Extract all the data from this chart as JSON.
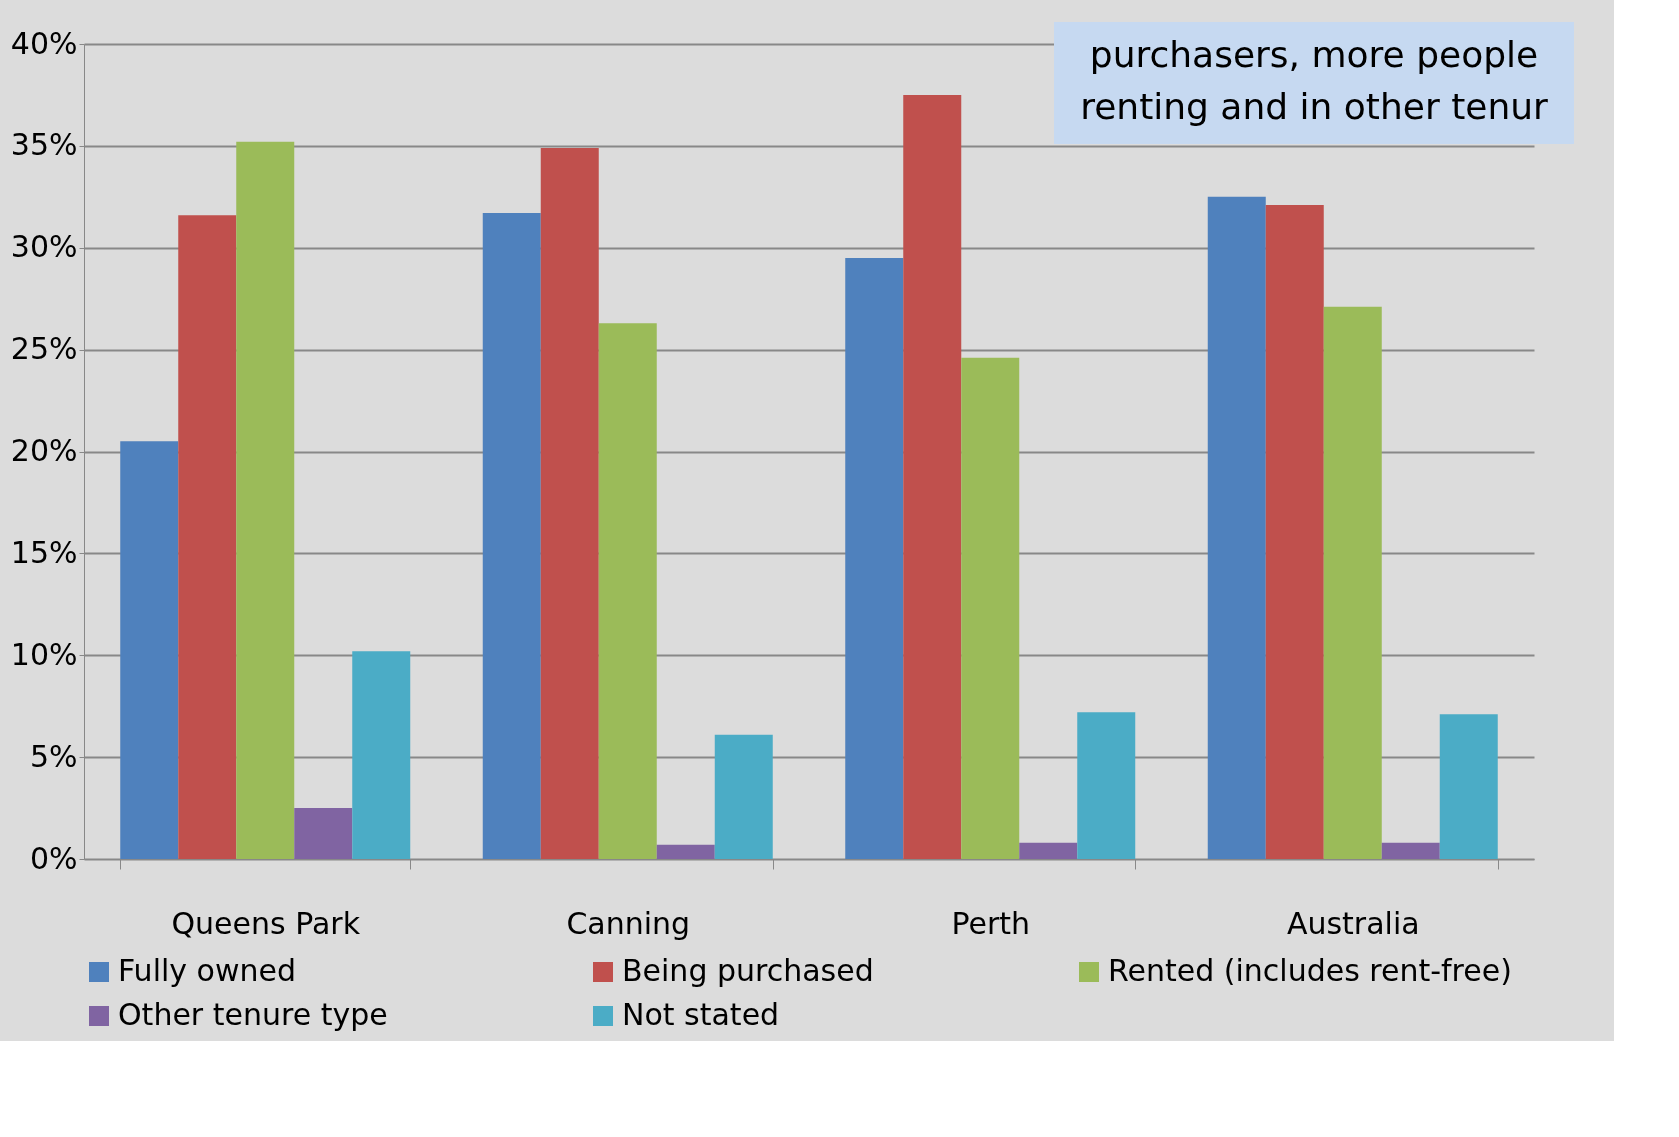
{
  "chart_data": {
    "type": "bar",
    "categories": [
      "Queens Park",
      "Canning",
      "Perth",
      "Australia"
    ],
    "series": [
      {
        "name": "Fully owned",
        "color": "#4f81bd",
        "values": [
          20.5,
          31.7,
          29.5,
          32.5
        ]
      },
      {
        "name": "Being purchased",
        "color": "#c0504d",
        "values": [
          31.6,
          34.9,
          37.5,
          32.1
        ]
      },
      {
        "name": "Rented (includes rent-free)",
        "color": "#9bbb59",
        "values": [
          35.2,
          26.3,
          24.6,
          27.1
        ]
      },
      {
        "name": "Other tenure type",
        "color": "#8064a2",
        "values": [
          2.5,
          0.7,
          0.8,
          0.8
        ]
      },
      {
        "name": "Not stated",
        "color": "#4bacc6",
        "values": [
          10.2,
          6.1,
          7.2,
          7.1
        ]
      }
    ],
    "ylim": [
      0,
      40
    ],
    "yticks": [
      {
        "value": 0,
        "label": "0%"
      },
      {
        "value": 5,
        "label": "5%"
      },
      {
        "value": 10,
        "label": "10%"
      },
      {
        "value": 15,
        "label": "15%"
      },
      {
        "value": 20,
        "label": "20%"
      },
      {
        "value": 25,
        "label": "25%"
      },
      {
        "value": 30,
        "label": "30%"
      },
      {
        "value": 35,
        "label": "35%"
      },
      {
        "value": 40,
        "label": "40%"
      }
    ],
    "grid": "y",
    "legend": "bottom",
    "annotations": [
      "purchasers, more people",
      "renting and in other tenur"
    ]
  }
}
